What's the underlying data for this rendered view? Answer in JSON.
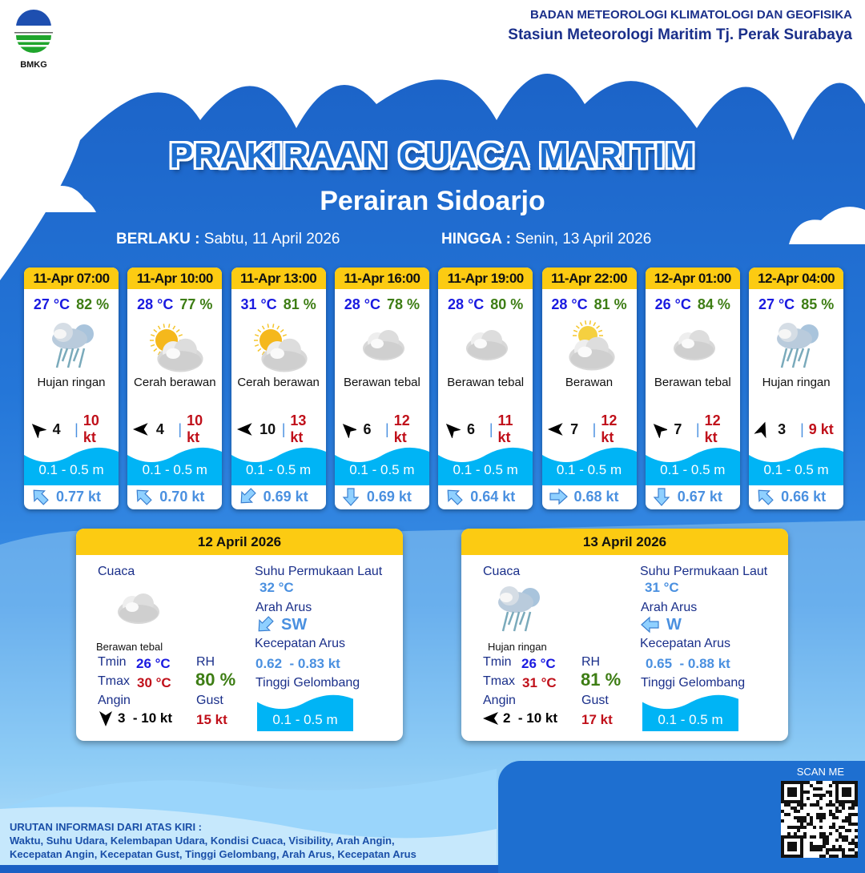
{
  "header": {
    "logo_text": "BMKG",
    "agency": "BADAN METEOROLOGI KLIMATOLOGI DAN GEOFISIKA",
    "station": "Stasiun Meteorologi Maritim Tj. Perak Surabaya",
    "title": "PRAKIRAAN CUACA MARITIM",
    "subtitle": "Perairan Sidoarjo",
    "valid_from_label": "BERLAKU :",
    "valid_from": "Sabtu, 11 April 2026",
    "valid_to_label": "HINGGA :",
    "valid_to": "Senin, 13 April 2026"
  },
  "colors": {
    "accent": "#fccb12",
    "temperature": "#1a1ae0",
    "humidity": "#3d7d14",
    "gust": "#c0101a",
    "current": "#4a90e0",
    "wave": "#00b4f5",
    "background": "#1e6fd0"
  },
  "forecasts": [
    {
      "time": "11-Apr 07:00",
      "temp": "27 °C",
      "rh": "82 %",
      "icon": "light-rain-icon",
      "condition": "Hujan ringan",
      "wind_dir_deg": 315,
      "wind": "4",
      "gust": "10 kt",
      "wave": "0.1 - 0.5 m",
      "current_dir": "NW",
      "current": "0.77 kt"
    },
    {
      "time": "11-Apr 10:00",
      "temp": "28 °C",
      "rh": "77 %",
      "icon": "partly-cloudy-icon",
      "condition": "Cerah berawan",
      "wind_dir_deg": 270,
      "wind": "4",
      "gust": "10 kt",
      "wave": "0.1 - 0.5 m",
      "current_dir": "NW",
      "current": "0.70 kt"
    },
    {
      "time": "11-Apr 13:00",
      "temp": "31 °C",
      "rh": "81 %",
      "icon": "partly-cloudy-icon",
      "condition": "Cerah berawan",
      "wind_dir_deg": 270,
      "wind": "10",
      "gust": "13 kt",
      "wave": "0.1 - 0.5 m",
      "current_dir": "SW",
      "current": "0.69 kt"
    },
    {
      "time": "11-Apr 16:00",
      "temp": "28 °C",
      "rh": "78 %",
      "icon": "overcast-icon",
      "condition": "Berawan tebal",
      "wind_dir_deg": 315,
      "wind": "6",
      "gust": "12 kt",
      "wave": "0.1 - 0.5 m",
      "current_dir": "S",
      "current": "0.69 kt"
    },
    {
      "time": "11-Apr 19:00",
      "temp": "28 °C",
      "rh": "80 %",
      "icon": "overcast-icon",
      "condition": "Berawan tebal",
      "wind_dir_deg": 315,
      "wind": "6",
      "gust": "11 kt",
      "wave": "0.1 - 0.5 m",
      "current_dir": "NW",
      "current": "0.64 kt"
    },
    {
      "time": "11-Apr 22:00",
      "temp": "28 °C",
      "rh": "81 %",
      "icon": "cloudy-icon",
      "condition": "Berawan",
      "wind_dir_deg": 270,
      "wind": "7",
      "gust": "12 kt",
      "wave": "0.1 - 0.5 m",
      "current_dir": "E",
      "current": "0.68 kt"
    },
    {
      "time": "12-Apr 01:00",
      "temp": "26 °C",
      "rh": "84 %",
      "icon": "overcast-icon",
      "condition": "Berawan tebal",
      "wind_dir_deg": 315,
      "wind": "7",
      "gust": "12 kt",
      "wave": "0.1 - 0.5 m",
      "current_dir": "S",
      "current": "0.67 kt"
    },
    {
      "time": "12-Apr 04:00",
      "temp": "27 °C",
      "rh": "85 %",
      "icon": "light-rain-icon",
      "condition": "Hujan ringan",
      "wind_dir_deg": 20,
      "wind": "3",
      "gust": "9 kt",
      "wave": "0.1 - 0.5 m",
      "current_dir": "NW",
      "current": "0.66 kt"
    }
  ],
  "labels": {
    "cuaca": "Cuaca",
    "tmin": "Tmin",
    "tmax": "Tmax",
    "angin": "Angin",
    "rh": "RH",
    "gust": "Gust",
    "sst": "Suhu Permukaan Laut",
    "arah_arus": "Arah Arus",
    "kec_arus": "Kecepatan Arus",
    "gelombang": "Tinggi Gelombang"
  },
  "daily": [
    {
      "date": "12 April 2026",
      "icon": "overcast-icon",
      "condition": "Berawan tebal",
      "tmin": "26 °C",
      "tmax": "30 °C",
      "wind_dir_deg": 180,
      "wind": "3  - 10 kt",
      "rh": "80 %",
      "gust": "15 kt",
      "sst": "32 °C",
      "current_dir": "SW",
      "current": "0.62  - 0.83 kt",
      "wave": "0.1 - 0.5 m"
    },
    {
      "date": "13 April 2026",
      "icon": "light-rain-icon",
      "condition": "Hujan ringan",
      "tmin": "26 °C",
      "tmax": "31 °C",
      "wind_dir_deg": 270,
      "wind": "2  - 10 kt",
      "rh": "81 %",
      "gust": "17 kt",
      "sst": "31 °C",
      "current_dir": "W",
      "current": "0.65  - 0.88 kt",
      "wave": "0.1 - 0.5 m"
    }
  ],
  "footer": {
    "heading": "URUTAN INFORMASI DARI ATAS KIRI :",
    "line1": "Waktu, Suhu Udara, Kelembapan Udara, Kondisi Cuaca, Visibility, Arah Angin,",
    "line2": "Kecepatan Angin, Kecepatan Gust, Tinggi Gelombang, Arah Arus, Kecepatan Arus",
    "scan": "SCAN ME"
  }
}
